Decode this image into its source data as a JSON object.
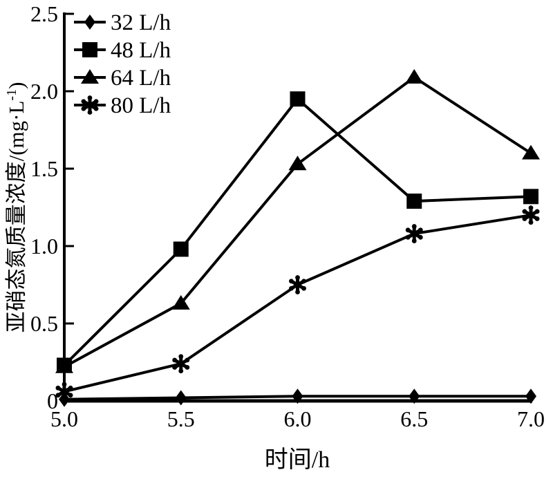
{
  "chart_data": {
    "type": "line",
    "title": "",
    "xlabel": "时间/h",
    "ylabel": "亚硝态氮质量浓度/(mg·L⁻¹)",
    "ylabel_parts": {
      "main": "亚硝态氮质量浓度/(mg·L",
      "sup": "-1",
      "close": ")"
    },
    "x": [
      5.0,
      5.5,
      6.0,
      6.5,
      7.0
    ],
    "x_tick_labels": [
      "5.0",
      "5.5",
      "6.0",
      "6.5",
      "7.0"
    ],
    "y_ticks": [
      0,
      0.5,
      1.0,
      1.5,
      2.0,
      2.5
    ],
    "y_tick_labels": [
      "0",
      "0.5",
      "1.0",
      "1.5",
      "2.0",
      "2.5"
    ],
    "xlim": [
      5.0,
      7.0
    ],
    "ylim": [
      0,
      2.5
    ],
    "grid": false,
    "legend_position": "top-left",
    "line_color": "#000000",
    "background_color": "#ffffff",
    "series": [
      {
        "name": "32 L/h",
        "marker": "diamond",
        "values": [
          0.01,
          0.02,
          0.03,
          0.03,
          0.03
        ]
      },
      {
        "name": "48 L/h",
        "marker": "square",
        "values": [
          0.23,
          0.98,
          1.95,
          1.29,
          1.32
        ]
      },
      {
        "name": "64 L/h",
        "marker": "triangle",
        "values": [
          0.22,
          0.63,
          1.53,
          2.09,
          1.6
        ]
      },
      {
        "name": "80 L/h",
        "marker": "asterisk",
        "values": [
          0.06,
          0.24,
          0.75,
          1.08,
          1.2
        ]
      }
    ]
  }
}
